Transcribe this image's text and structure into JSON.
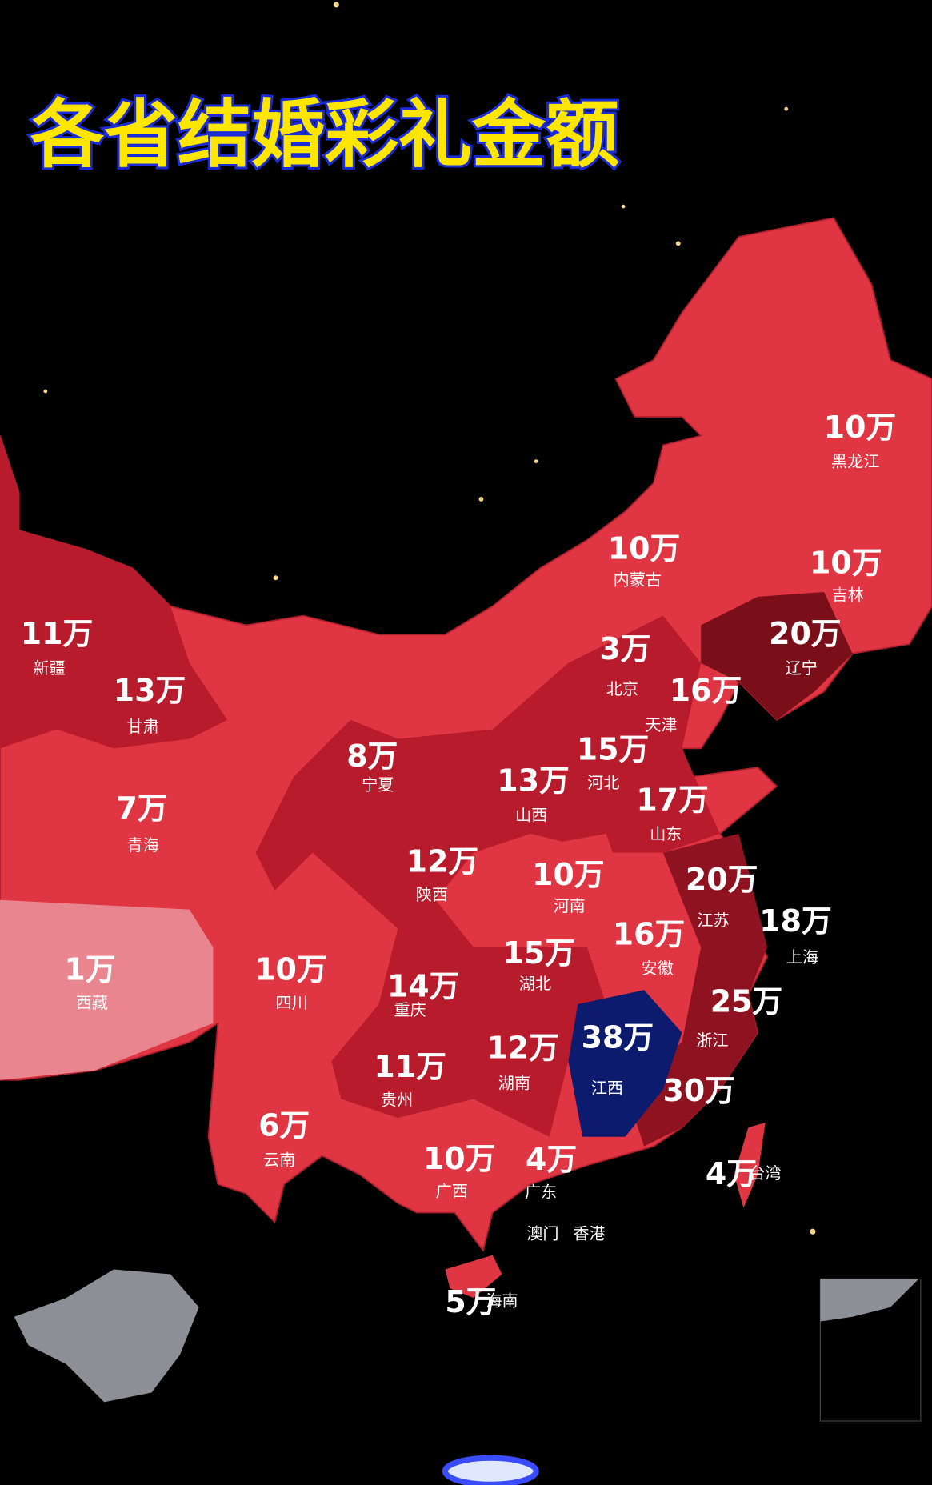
{
  "title": "各省结婚彩礼金额",
  "regions": [
    {
      "name": "黑龙江",
      "amount": "10万"
    },
    {
      "name": "吉林",
      "amount": "10万"
    },
    {
      "name": "辽宁",
      "amount": "20万"
    },
    {
      "name": "内蒙古",
      "amount": "10万"
    },
    {
      "name": "北京",
      "amount": "3万"
    },
    {
      "name": "天津",
      "amount": "16万"
    },
    {
      "name": "河北",
      "amount": "15万"
    },
    {
      "name": "山西",
      "amount": "13万"
    },
    {
      "name": "山东",
      "amount": "17万"
    },
    {
      "name": "江苏",
      "amount": "20万"
    },
    {
      "name": "上海",
      "amount": "18万"
    },
    {
      "name": "河南",
      "amount": "10万"
    },
    {
      "name": "安徽",
      "amount": "16万"
    },
    {
      "name": "湖北",
      "amount": "15万"
    },
    {
      "name": "浙江",
      "amount": "25万"
    },
    {
      "name": "江西",
      "amount": "38万"
    },
    {
      "amount": "30万"
    },
    {
      "name": "湖南",
      "amount": "12万"
    },
    {
      "name": "重庆",
      "amount": "14万"
    },
    {
      "name": "贵州",
      "amount": "11万"
    },
    {
      "name": "四川",
      "amount": "10万"
    },
    {
      "name": "陕西",
      "amount": "12万"
    },
    {
      "name": "宁夏",
      "amount": "8万"
    },
    {
      "name": "甘肃",
      "amount": "13万"
    },
    {
      "name": "新疆",
      "amount": "11万"
    },
    {
      "name": "青海",
      "amount": "7万"
    },
    {
      "name": "西藏",
      "amount": "1万"
    },
    {
      "name": "云南",
      "amount": "6万"
    },
    {
      "name": "广西",
      "amount": "10万"
    },
    {
      "name": "广东",
      "amount": "4万"
    },
    {
      "name": "台湾",
      "amount": "4万"
    },
    {
      "name": "海南",
      "amount": "5万"
    }
  ],
  "labels": [
    "澳门",
    "香港"
  ]
}
